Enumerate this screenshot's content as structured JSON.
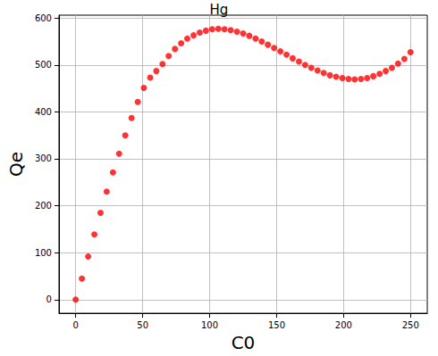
{
  "chart_data": {
    "type": "scatter",
    "title": "Hg",
    "x_label": "C0",
    "y_label": "Qe",
    "x": [
      0,
      4.6,
      9.3,
      13.9,
      18.5,
      23.1,
      27.8,
      32.4,
      37.0,
      41.7,
      46.3,
      50.9,
      55.6,
      60.2,
      64.8,
      69.4,
      74.1,
      78.7,
      83.3,
      88.0,
      92.6,
      97.2,
      101.9,
      106.5,
      111.1,
      115.7,
      120.4,
      125.0,
      129.6,
      134.3,
      138.9,
      143.5,
      148.1,
      152.8,
      157.4,
      162.0,
      166.7,
      171.3,
      175.9,
      180.6,
      185.2,
      189.8,
      194.4,
      199.1,
      203.7,
      208.3,
      213.0,
      217.6,
      222.2,
      226.9,
      231.5,
      236.1,
      240.7,
      245.4,
      250.0
    ],
    "values": [
      0,
      45,
      92,
      139,
      185,
      230,
      271,
      311,
      350,
      387,
      421,
      451,
      473,
      487,
      502,
      519,
      534,
      546,
      556,
      563,
      569,
      573,
      576,
      577,
      576,
      574,
      571,
      567,
      562,
      556,
      550,
      543,
      536,
      529,
      522,
      514,
      507,
      500,
      494,
      488,
      483,
      478,
      475,
      472,
      470,
      469,
      470,
      472,
      476,
      481,
      487,
      494,
      503,
      513,
      527
    ],
    "color": "red",
    "marker": "circle",
    "xlim": [
      -12.5,
      262.5
    ],
    "xticks": [
      0,
      50,
      100,
      150,
      200,
      250
    ],
    "ylim": [
      -29,
      606
    ],
    "yticks": [
      0,
      100,
      200,
      300,
      400,
      500,
      600
    ],
    "grid": true
  }
}
